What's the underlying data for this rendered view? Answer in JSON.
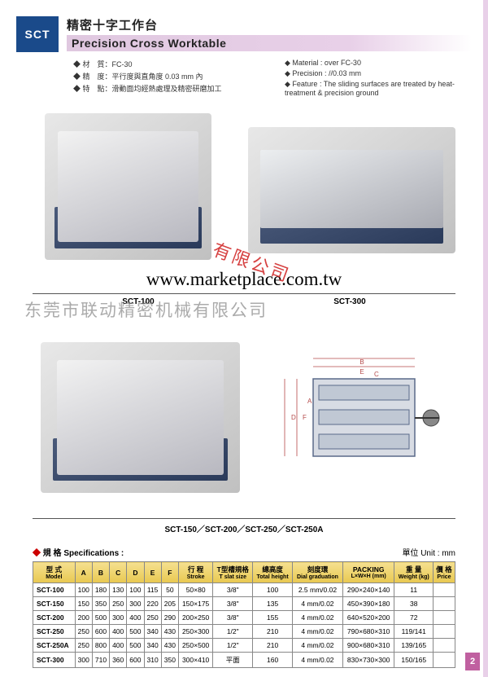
{
  "badge": "SCT",
  "title_cn": "精密十字工作台",
  "title_en": "Precision Cross Worktable",
  "bullets_left": [
    "材　質：FC-30",
    "精　度：平行度與直角度 0.03 mm 內",
    "特　點：滑動面均經熱處理及精密研磨加工"
  ],
  "bullets_right": [
    "Material : over FC-30",
    "Precision : //0.03 mm",
    "Feature : The sliding surfaces are treated by heat-treatment & precision ground"
  ],
  "label_p1": "SCT-100",
  "label_p2": "SCT-300",
  "label_p3": "SCT-150／SCT-200／SCT-250／SCT-250A",
  "watermark_url": "www.marketplace.com.tw",
  "watermark_cn": "东莞市联动精密机械有限公司",
  "watermark_red": "有限公司",
  "spec_label": "規 格 Specifications :",
  "unit_label": "單位 Unit : mm",
  "columns": [
    {
      "top": "型 式",
      "sub": "Model"
    },
    {
      "top": "A"
    },
    {
      "top": "B"
    },
    {
      "top": "C"
    },
    {
      "top": "D"
    },
    {
      "top": "E"
    },
    {
      "top": "F"
    },
    {
      "top": "行 程",
      "sub": "Stroke"
    },
    {
      "top": "T型槽規格",
      "sub": "T slat size"
    },
    {
      "top": "總高度",
      "sub": "Total height"
    },
    {
      "top": "刻度環",
      "sub": "Dial graduation"
    },
    {
      "top": "PACKING",
      "sub": "L×W×H (mm)"
    },
    {
      "top": "重 量",
      "sub": "Weight (kg)"
    },
    {
      "top": "價 格",
      "sub": "Price"
    }
  ],
  "rows": [
    [
      "SCT-100",
      "100",
      "180",
      "130",
      "100",
      "115",
      "50",
      "50×80",
      "3/8\"",
      "100",
      "2.5 mm/0.02",
      "290×240×140",
      "11",
      ""
    ],
    [
      "SCT-150",
      "150",
      "350",
      "250",
      "300",
      "220",
      "205",
      "150×175",
      "3/8\"",
      "135",
      "4 mm/0.02",
      "450×390×180",
      "38",
      ""
    ],
    [
      "SCT-200",
      "200",
      "500",
      "300",
      "400",
      "250",
      "290",
      "200×250",
      "3/8\"",
      "155",
      "4 mm/0.02",
      "640×520×200",
      "72",
      ""
    ],
    [
      "SCT-250",
      "250",
      "600",
      "400",
      "500",
      "340",
      "430",
      "250×300",
      "1/2\"",
      "210",
      "4 mm/0.02",
      "790×680×310",
      "119/141",
      ""
    ],
    [
      "SCT-250A",
      "250",
      "800",
      "400",
      "500",
      "340",
      "430",
      "250×500",
      "1/2\"",
      "210",
      "4 mm/0.02",
      "900×680×310",
      "139/165",
      ""
    ],
    [
      "SCT-300",
      "300",
      "710",
      "360",
      "600",
      "310",
      "350",
      "300×410",
      "平面",
      "160",
      "4 mm/0.02",
      "830×730×300",
      "150/165",
      ""
    ]
  ],
  "page_number": "2",
  "colors": {
    "badge_bg": "#1a4a8a",
    "title_bar": "#e0c8e0",
    "th_bg": "#e8c850",
    "diagram_line": "#b54a4a",
    "page_tab": "#c060a0"
  }
}
